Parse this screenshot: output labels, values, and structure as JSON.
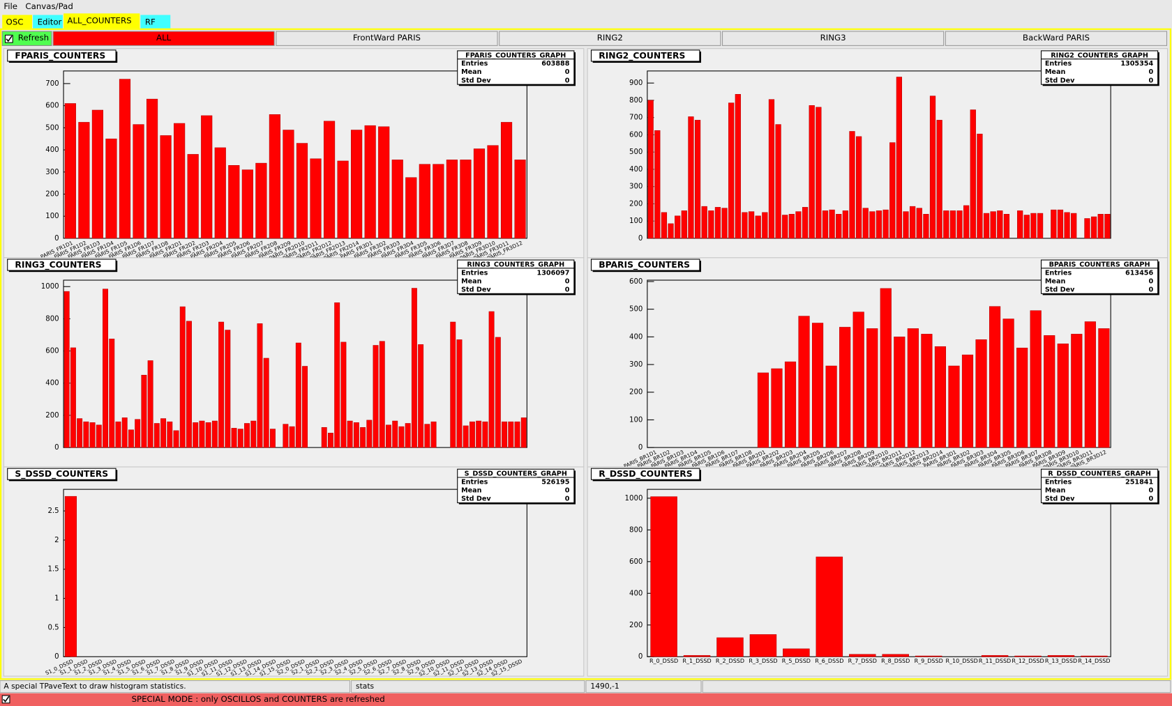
{
  "menu": [
    "File",
    "Canvas/Pad"
  ],
  "tabs": [
    "OSC",
    "Editor",
    "ALL_COUNTERS",
    "RF"
  ],
  "refresh": "Refresh",
  "buttons": [
    "ALL",
    "FrontWard PARIS",
    "RING2",
    "RING3",
    "BackWard PARIS"
  ],
  "status": [
    "A special TPaveText to draw histogram statistics.",
    "stats",
    "1490,-1"
  ],
  "special_mode": "SPECIAL MODE : only OSCILLOS and COUNTERS are refreshed",
  "stats_labels": [
    "Entries",
    "Mean",
    "Std Dev"
  ],
  "chart_data": [
    {
      "type": "bar",
      "title": "FPARIS_COUNTERS",
      "color": "#ff0000",
      "categories": [
        "PARIS_FR1D1",
        "PARIS_FR1D2",
        "PARIS_FR1D3",
        "PARIS_FR1D4",
        "PARIS_FR1D5",
        "PARIS_FR1D6",
        "PARIS_FR1D7",
        "PARIS_FR1D8",
        "PARIS_FR2D1",
        "PARIS_FR2D2",
        "PARIS_FR2D3",
        "PARIS_FR2D4",
        "PARIS_FR2D5",
        "PARIS_FR2D6",
        "PARIS_FR2D7",
        "PARIS_FR2D8",
        "PARIS_FR2D9",
        "PARIS_FR2D10",
        "PARIS_FR2D11",
        "PARIS_FR2D12",
        "PARIS_FR2D13",
        "PARIS_FR2D14",
        "PARIS_FR3D1",
        "PARIS_FR3D2",
        "PARIS_FR3D3",
        "PARIS_FR3D4",
        "PARIS_FR3D5",
        "PARIS_FR3D6",
        "PARIS_FR3D7",
        "PARIS_FR3D8",
        "PARIS_FR3D9",
        "PARIS_FR3D10",
        "PARIS_FR3D11",
        "PARIS_FR3D12"
      ],
      "values": [
        610,
        525,
        580,
        450,
        720,
        515,
        630,
        465,
        520,
        380,
        555,
        410,
        330,
        310,
        340,
        560,
        490,
        430,
        360,
        530,
        350,
        490,
        510,
        505,
        355,
        275,
        335,
        335,
        355,
        355,
        405,
        420,
        525,
        355
      ],
      "ylim": [
        0,
        757
      ],
      "yticks": [
        0,
        100,
        200,
        300,
        400,
        500,
        600,
        700
      ],
      "stats": {
        "title": "FPARIS_COUNTERS_GRAPH",
        "entries": 603888,
        "mean": 0,
        "std_dev": 0
      }
    },
    {
      "type": "bar",
      "title": "RING2_COUNTERS",
      "color": "#ff0000",
      "categories": [
        null,
        null,
        null,
        null,
        null,
        null,
        null,
        null,
        null,
        null,
        null,
        null,
        null,
        null,
        null,
        null,
        null,
        null,
        null,
        null,
        null,
        null,
        null,
        null,
        null,
        null,
        null,
        null,
        null,
        null,
        null,
        null,
        null,
        null,
        null,
        null,
        null,
        null,
        null,
        null,
        null,
        null,
        null,
        null,
        null,
        null,
        null,
        null,
        null,
        null,
        null,
        null,
        null,
        null,
        null,
        null,
        null,
        null,
        null,
        null,
        null,
        null,
        null,
        null,
        null,
        null,
        null,
        null,
        null
      ],
      "values": [
        800,
        625,
        150,
        85,
        130,
        160,
        705,
        685,
        185,
        160,
        180,
        175,
        785,
        835,
        150,
        155,
        130,
        150,
        805,
        660,
        135,
        140,
        155,
        180,
        770,
        760,
        160,
        165,
        140,
        160,
        620,
        590,
        175,
        155,
        160,
        165,
        555,
        935,
        155,
        185,
        175,
        140,
        825,
        685,
        160,
        160,
        160,
        190,
        745,
        605,
        145,
        155,
        160,
        140,
        0,
        160,
        135,
        145,
        145,
        0,
        165,
        165,
        150,
        145,
        0,
        115,
        125,
        140,
        140
      ],
      "ylim": [
        0,
        970
      ],
      "yticks": [
        0,
        100,
        200,
        300,
        400,
        500,
        600,
        700,
        800,
        900
      ],
      "stats": {
        "title": "RING2_COUNTERS_GRAPH",
        "entries": 1305354,
        "mean": 0,
        "std_dev": 0
      }
    },
    {
      "type": "bar",
      "title": "RING3_COUNTERS",
      "color": "#ff0000",
      "categories": [
        null,
        null,
        null,
        null,
        null,
        null,
        null,
        null,
        null,
        null,
        null,
        null,
        null,
        null,
        null,
        null,
        null,
        null,
        null,
        null,
        null,
        null,
        null,
        null,
        null,
        null,
        null,
        null,
        null,
        null,
        null,
        null,
        null,
        null,
        null,
        null,
        null,
        null,
        null,
        null,
        null,
        null,
        null,
        null,
        null,
        null,
        null,
        null,
        null,
        null,
        null,
        null,
        null,
        null,
        null,
        null,
        null,
        null,
        null,
        null,
        null,
        null,
        null,
        null,
        null,
        null,
        null,
        null,
        null,
        null,
        null,
        null
      ],
      "values": [
        970,
        620,
        180,
        160,
        155,
        140,
        985,
        675,
        160,
        185,
        110,
        175,
        450,
        540,
        150,
        180,
        160,
        105,
        875,
        785,
        155,
        165,
        155,
        165,
        780,
        730,
        120,
        115,
        150,
        165,
        770,
        555,
        115,
        0,
        145,
        130,
        650,
        505,
        0,
        0,
        125,
        90,
        900,
        655,
        165,
        155,
        125,
        170,
        635,
        660,
        140,
        165,
        130,
        150,
        990,
        640,
        145,
        160,
        0,
        0,
        780,
        670,
        135,
        160,
        165,
        160,
        845,
        685,
        160,
        160,
        160,
        185
      ],
      "ylim": [
        0,
        1040
      ],
      "yticks": [
        0,
        200,
        400,
        600,
        800,
        1000
      ],
      "stats": {
        "title": "RING3_COUNTERS_GRAPH",
        "entries": 1306097,
        "mean": 0,
        "std_dev": 0
      }
    },
    {
      "type": "bar",
      "title": "BPARIS_COUNTERS",
      "color": "#ff0000",
      "categories": [
        "PARIS_BR1D1",
        "PARIS_BR1D2",
        "PARIS_BR1D3",
        "PARIS_BR1D4",
        "PARIS_BR1D5",
        "PARIS_BR1D6",
        "PARIS_BR1D7",
        "PARIS_BR1D8",
        "PARIS_BR2D1",
        "PARIS_BR2D2",
        "PARIS_BR2D3",
        "PARIS_BR2D4",
        "PARIS_BR2D5",
        "PARIS_BR2D6",
        "PARIS_BR2D7",
        "PARIS_BR2D8",
        "PARIS_BR2D9",
        "PARIS_BR2D10",
        "PARIS_BR2D11",
        "PARIS_BR2D12",
        "PARIS_BR2D13",
        "PARIS_BR2D14",
        "PARIS_BR3D1",
        "PARIS_BR3D2",
        "PARIS_BR3D3",
        "PARIS_BR3D4",
        "PARIS_BR3D5",
        "PARIS_BR3D6",
        "PARIS_BR3D7",
        "PARIS_BR3D8",
        "PARIS_BR3D9",
        "PARIS_BR3D10",
        "PARIS_BR3D11",
        "PARIS_BR3D12"
      ],
      "values": [
        0,
        0,
        0,
        0,
        0,
        0,
        0,
        0,
        270,
        285,
        310,
        475,
        450,
        295,
        435,
        490,
        430,
        575,
        400,
        430,
        410,
        365,
        295,
        335,
        390,
        510,
        465,
        360,
        495,
        405,
        375,
        410,
        455,
        430
      ],
      "ylim": [
        0,
        605
      ],
      "yticks": [
        0,
        100,
        200,
        300,
        400,
        500,
        600
      ],
      "stats": {
        "title": "BPARIS_COUNTERS_GRAPH",
        "entries": 613456,
        "mean": 0,
        "std_dev": 0
      }
    },
    {
      "type": "bar",
      "title": "S_DSSD_COUNTERS",
      "color": "#ff0000",
      "categories": [
        "S1_0_DSSD",
        "S1_1_DSSD",
        "S1_2_DSSD",
        "S1_3_DSSD",
        "S1_4_DSSD",
        "S1_5_DSSD",
        "S1_6_DSSD",
        "S1_7_DSSD",
        "S1_8_DSSD",
        "S1_9_DSSD",
        "S1_10_DSSD",
        "S1_11_DSSD",
        "S1_12_DSSD",
        "S1_13_DSSD",
        "S1_14_DSSD",
        "S1_15_DSSD",
        "S2_0_DSSD",
        "S2_1_DSSD",
        "S2_2_DSSD",
        "S2_3_DSSD",
        "S2_4_DSSD",
        "S2_5_DSSD",
        "S2_6_DSSD",
        "S2_7_DSSD",
        "S2_8_DSSD",
        "S2_9_DSSD",
        "S2_10_DSSD",
        "S2_11_DSSD",
        "S2_12_DSSD",
        "S2_13_DSSD",
        "S2_14_DSSD",
        "S2_15_DSSD"
      ],
      "values": [
        2.75,
        0,
        0,
        0,
        0,
        0,
        0,
        0,
        0,
        0,
        0,
        0,
        0,
        0,
        0,
        0,
        0,
        0,
        0,
        0,
        0,
        0,
        0,
        0,
        0,
        0,
        0,
        0,
        0,
        0,
        0,
        0
      ],
      "ylim": [
        0,
        2.87
      ],
      "yticks": [
        0,
        0.5,
        1,
        1.5,
        2,
        2.5
      ],
      "stats": {
        "title": "S_DSSD_COUNTERS_GRAPH",
        "entries": 526195,
        "mean": 0,
        "std_dev": 0
      }
    },
    {
      "type": "bar",
      "title": "R_DSSD_COUNTERS",
      "color": "#ff0000",
      "categories": [
        "R_0_DSSD",
        "R_1_DSSD",
        "R_2_DSSD",
        "R_3_DSSD",
        "R_5_DSSD",
        "R_6_DSSD",
        "R_7_DSSD",
        "R_8_DSSD",
        "R_9_DSSD",
        "R_10_DSSD",
        "R_11_DSSD",
        "R_12_DSSD",
        "R_13_DSSD",
        "R_14_DSSD"
      ],
      "values": [
        1010,
        8,
        120,
        140,
        50,
        630,
        15,
        15,
        5,
        0,
        8,
        5,
        8,
        5
      ],
      "ylim": [
        0,
        1056
      ],
      "yticks": [
        0,
        200,
        400,
        600,
        800,
        1000
      ],
      "stats": {
        "title": "R_DSSD_COUNTERS_GRAPH",
        "entries": 251841,
        "mean": 0,
        "std_dev": 0
      }
    }
  ]
}
